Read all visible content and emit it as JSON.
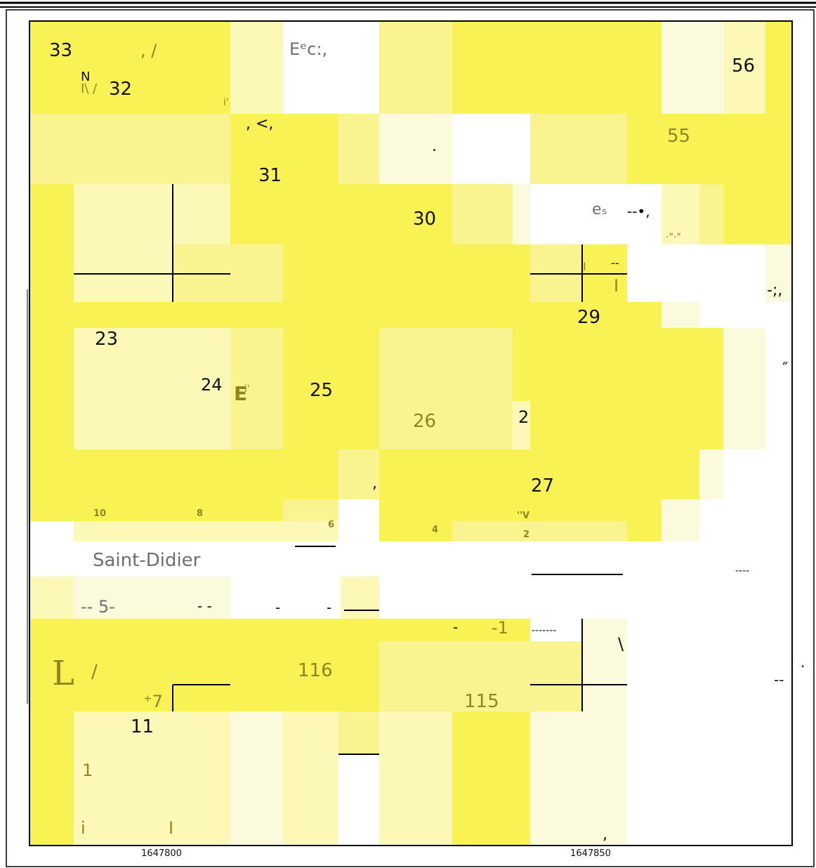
{
  "labels": [
    "33",
    ", /",
    "Eᵉc:,",
    "56",
    "N",
    "I\\ /",
    "32",
    "i'",
    ", <,",
    "55",
    ".",
    "31",
    "30",
    "eₛ",
    "--•,",
    "·\"·\"",
    "I",
    "--",
    "I",
    "-;,",
    "29",
    "23",
    "24",
    "E",
    "i'",
    "25",
    "″",
    "26",
    "2",
    "27",
    ",",
    "10",
    "8",
    "6",
    "4",
    "''V",
    "2",
    "Saint-Didier",
    "----",
    "-- 5-",
    "- -",
    "-",
    "-",
    "-",
    "-1",
    "-------",
    "\\",
    ".",
    "L",
    "/",
    "116",
    "--",
    "⁺7",
    "115",
    "11",
    "1",
    "i",
    "I",
    ","
  ],
  "axis_labels": [
    "1647800",
    "1647850"
  ]
}
